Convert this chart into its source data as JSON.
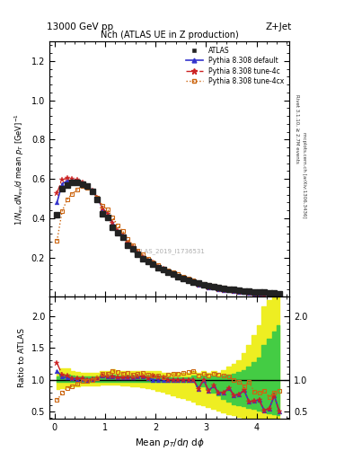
{
  "title_top": "13000 GeV pp",
  "title_right": "Z+Jet",
  "plot_title": "Nch (ATLAS UE in Z production)",
  "watermark": "ATLAS_2019_I1736531",
  "right_label1": "Rivet 3.1.10, ≥ 2.7M events",
  "right_label2": "mcplots.cern.ch [arXiv:1306.3436]",
  "x": [
    0.05,
    0.15,
    0.25,
    0.35,
    0.45,
    0.55,
    0.65,
    0.75,
    0.85,
    0.95,
    1.05,
    1.15,
    1.25,
    1.35,
    1.45,
    1.55,
    1.65,
    1.75,
    1.85,
    1.95,
    2.05,
    2.15,
    2.25,
    2.35,
    2.45,
    2.55,
    2.65,
    2.75,
    2.85,
    2.95,
    3.05,
    3.15,
    3.25,
    3.35,
    3.45,
    3.55,
    3.65,
    3.75,
    3.85,
    3.95,
    4.05,
    4.15,
    4.25,
    4.35,
    4.45
  ],
  "atlas_y": [
    0.42,
    0.55,
    0.57,
    0.585,
    0.585,
    0.575,
    0.565,
    0.535,
    0.495,
    0.425,
    0.405,
    0.355,
    0.325,
    0.305,
    0.265,
    0.245,
    0.215,
    0.195,
    0.18,
    0.165,
    0.15,
    0.14,
    0.125,
    0.115,
    0.105,
    0.095,
    0.085,
    0.075,
    0.07,
    0.062,
    0.058,
    0.052,
    0.048,
    0.044,
    0.04,
    0.037,
    0.034,
    0.031,
    0.029,
    0.027,
    0.025,
    0.023,
    0.022,
    0.02,
    0.018
  ],
  "py_default_y": [
    0.48,
    0.575,
    0.59,
    0.595,
    0.59,
    0.58,
    0.565,
    0.54,
    0.505,
    0.45,
    0.425,
    0.375,
    0.335,
    0.315,
    0.275,
    0.255,
    0.225,
    0.205,
    0.185,
    0.165,
    0.15,
    0.14,
    0.125,
    0.115,
    0.105,
    0.095,
    0.085,
    0.075,
    0.06,
    0.062,
    0.048,
    0.047,
    0.038,
    0.035,
    0.035,
    0.028,
    0.026,
    0.026,
    0.019,
    0.018,
    0.017,
    0.012,
    0.012,
    0.015,
    0.009
  ],
  "py_tune4c_y": [
    0.53,
    0.595,
    0.605,
    0.6,
    0.595,
    0.585,
    0.565,
    0.54,
    0.505,
    0.45,
    0.425,
    0.375,
    0.335,
    0.315,
    0.275,
    0.255,
    0.225,
    0.205,
    0.185,
    0.175,
    0.155,
    0.145,
    0.125,
    0.115,
    0.105,
    0.095,
    0.085,
    0.075,
    0.06,
    0.062,
    0.048,
    0.047,
    0.038,
    0.035,
    0.035,
    0.028,
    0.026,
    0.026,
    0.019,
    0.018,
    0.017,
    0.012,
    0.012,
    0.015,
    0.009
  ],
  "py_tune4cx_y": [
    0.285,
    0.435,
    0.495,
    0.525,
    0.545,
    0.565,
    0.555,
    0.535,
    0.505,
    0.465,
    0.445,
    0.405,
    0.365,
    0.335,
    0.295,
    0.265,
    0.235,
    0.215,
    0.195,
    0.175,
    0.16,
    0.145,
    0.135,
    0.125,
    0.115,
    0.105,
    0.095,
    0.085,
    0.075,
    0.068,
    0.062,
    0.057,
    0.052,
    0.047,
    0.042,
    0.037,
    0.033,
    0.028,
    0.028,
    0.022,
    0.02,
    0.019,
    0.016,
    0.016,
    0.015
  ],
  "ratio_default_y": [
    1.14,
    1.045,
    1.035,
    1.017,
    1.009,
    1.009,
    1.0,
    1.009,
    1.02,
    1.059,
    1.049,
    1.056,
    1.031,
    1.033,
    1.038,
    1.041,
    1.047,
    1.051,
    1.028,
    1.0,
    1.0,
    1.0,
    1.0,
    1.0,
    1.0,
    1.0,
    1.0,
    1.0,
    0.857,
    1.0,
    0.828,
    0.904,
    0.792,
    0.795,
    0.875,
    0.757,
    0.765,
    0.839,
    0.655,
    0.667,
    0.68,
    0.522,
    0.545,
    0.75,
    0.5
  ],
  "ratio_tune4c_y": [
    1.262,
    1.082,
    1.061,
    1.026,
    1.017,
    1.017,
    1.0,
    1.009,
    1.02,
    1.059,
    1.049,
    1.056,
    1.031,
    1.033,
    1.038,
    1.041,
    1.047,
    1.051,
    1.028,
    1.061,
    1.033,
    1.036,
    1.0,
    1.0,
    1.0,
    1.0,
    1.0,
    1.0,
    0.857,
    1.0,
    0.828,
    0.904,
    0.792,
    0.795,
    0.875,
    0.757,
    0.765,
    0.839,
    0.655,
    0.667,
    0.68,
    0.522,
    0.545,
    0.75,
    0.5
  ],
  "ratio_tune4cx_y": [
    0.679,
    0.791,
    0.868,
    0.897,
    0.932,
    0.983,
    0.982,
    1.0,
    1.02,
    1.094,
    1.099,
    1.141,
    1.123,
    1.098,
    1.113,
    1.082,
    1.093,
    1.103,
    1.083,
    1.061,
    1.067,
    1.036,
    1.08,
    1.087,
    1.095,
    1.105,
    1.118,
    1.133,
    1.071,
    1.097,
    1.069,
    1.096,
    1.083,
    1.068,
    1.05,
    1.0,
    0.97,
    0.903,
    0.966,
    0.815,
    0.8,
    0.826,
    0.727,
    0.8,
    0.833
  ],
  "band_green_lo": [
    0.97,
    0.97,
    0.97,
    0.97,
    0.97,
    0.97,
    0.97,
    0.97,
    0.97,
    0.97,
    0.97,
    0.97,
    0.97,
    0.97,
    0.97,
    0.97,
    0.97,
    0.97,
    0.97,
    0.97,
    0.97,
    0.97,
    0.97,
    0.97,
    0.97,
    0.97,
    0.97,
    0.97,
    0.9,
    0.9,
    0.85,
    0.8,
    0.75,
    0.7,
    0.65,
    0.62,
    0.6,
    0.58,
    0.56,
    0.54,
    0.52,
    0.5,
    0.48,
    0.46,
    0.44
  ],
  "band_green_hi": [
    1.05,
    1.08,
    1.08,
    1.06,
    1.05,
    1.05,
    1.05,
    1.05,
    1.05,
    1.07,
    1.07,
    1.08,
    1.06,
    1.06,
    1.06,
    1.06,
    1.07,
    1.07,
    1.06,
    1.06,
    1.06,
    1.04,
    1.04,
    1.04,
    1.04,
    1.04,
    1.04,
    1.06,
    1.04,
    1.06,
    1.04,
    1.06,
    1.04,
    1.06,
    1.08,
    1.1,
    1.12,
    1.15,
    1.2,
    1.28,
    1.35,
    1.55,
    1.65,
    1.75,
    1.85
  ],
  "band_yellow_lo": [
    0.85,
    0.87,
    0.88,
    0.89,
    0.9,
    0.91,
    0.91,
    0.91,
    0.91,
    0.92,
    0.92,
    0.92,
    0.92,
    0.91,
    0.91,
    0.9,
    0.89,
    0.88,
    0.87,
    0.85,
    0.83,
    0.81,
    0.78,
    0.76,
    0.73,
    0.71,
    0.68,
    0.65,
    0.62,
    0.6,
    0.57,
    0.54,
    0.51,
    0.49,
    0.46,
    0.44,
    0.42,
    0.4,
    0.38,
    0.36,
    0.34,
    0.32,
    0.3,
    0.28,
    0.26
  ],
  "band_yellow_hi": [
    1.1,
    1.18,
    1.18,
    1.14,
    1.12,
    1.11,
    1.11,
    1.11,
    1.11,
    1.14,
    1.14,
    1.16,
    1.13,
    1.13,
    1.13,
    1.13,
    1.14,
    1.14,
    1.13,
    1.13,
    1.13,
    1.11,
    1.11,
    1.11,
    1.11,
    1.11,
    1.11,
    1.14,
    1.11,
    1.14,
    1.11,
    1.14,
    1.11,
    1.15,
    1.21,
    1.25,
    1.3,
    1.42,
    1.55,
    1.7,
    1.85,
    2.15,
    2.25,
    2.35,
    2.45
  ],
  "colors": {
    "atlas": "#222222",
    "py_default": "#3333cc",
    "py_tune4c": "#cc2222",
    "py_tune4cx": "#cc6611",
    "band_green": "#44cc44",
    "band_yellow": "#eeee22"
  },
  "ylim_main": [
    0.0,
    1.3
  ],
  "ylim_ratio": [
    0.39,
    2.3
  ],
  "xlim": [
    -0.1,
    4.65
  ],
  "xticks": [
    0,
    1,
    2,
    3,
    4
  ],
  "yticks_main": [
    0.2,
    0.4,
    0.6,
    0.8,
    1.0,
    1.2
  ],
  "yticks_ratio": [
    0.5,
    1.0,
    1.5,
    2.0
  ]
}
